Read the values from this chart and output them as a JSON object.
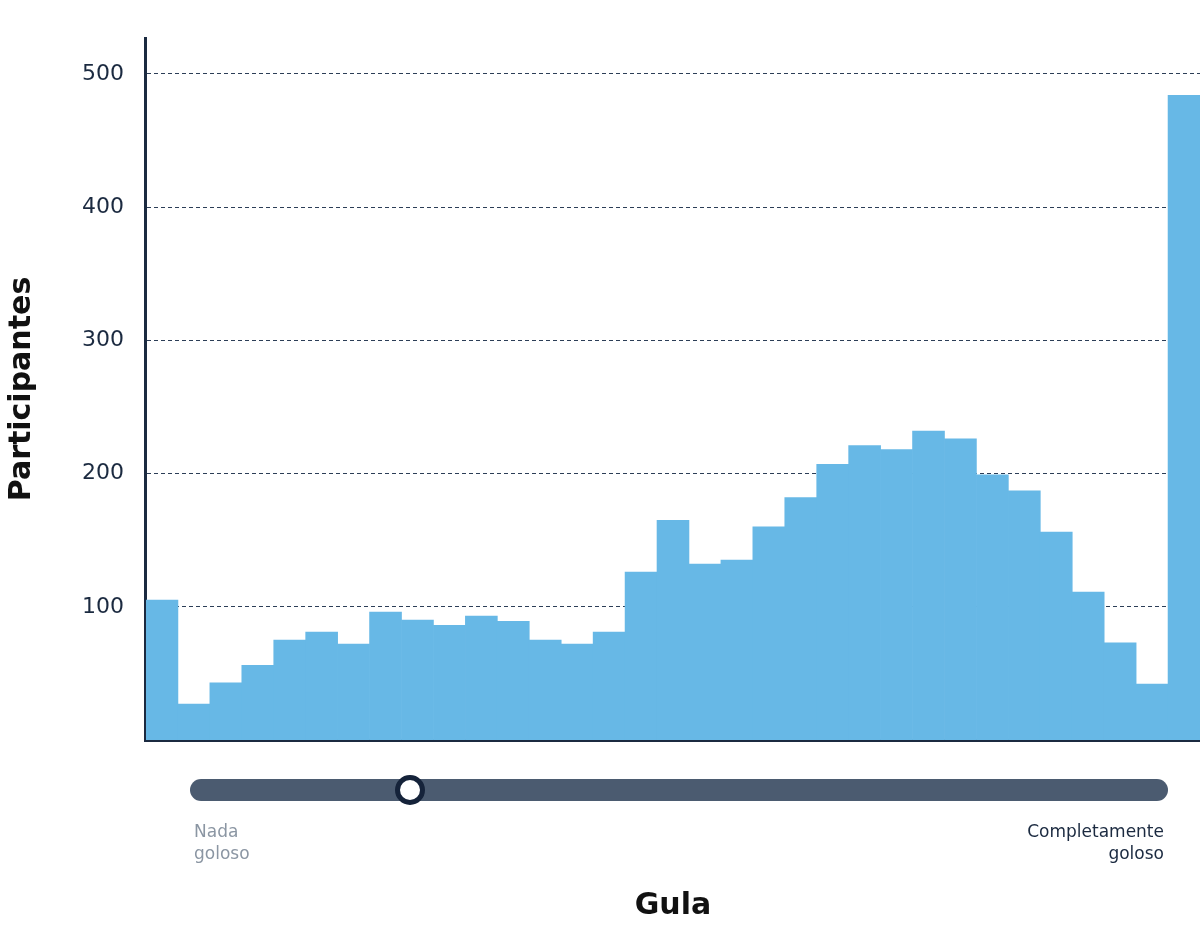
{
  "chart_data": {
    "type": "bar",
    "xlabel": "Gula",
    "ylabel": "Participantes",
    "categories": [
      null,
      null,
      null,
      null,
      null,
      null,
      null,
      null,
      null,
      null,
      null,
      null,
      null,
      null,
      null,
      null,
      null,
      null,
      null,
      null,
      null,
      null,
      null,
      null,
      null,
      null,
      null,
      null,
      null,
      null,
      null,
      null,
      null
    ],
    "values": [
      105,
      27,
      43,
      56,
      75,
      81,
      72,
      96,
      90,
      86,
      93,
      89,
      75,
      72,
      81,
      126,
      165,
      132,
      135,
      160,
      182,
      207,
      221,
      218,
      232,
      226,
      199,
      187,
      156,
      111,
      73,
      42,
      484
    ],
    "color": "#67b8e6",
    "ylim": [
      0,
      527
    ],
    "yticks": [
      100,
      200,
      300,
      400,
      500
    ],
    "grid": "y",
    "legend": false,
    "annotations": [
      "Nada goloso",
      "Completamente goloso"
    ]
  }
}
